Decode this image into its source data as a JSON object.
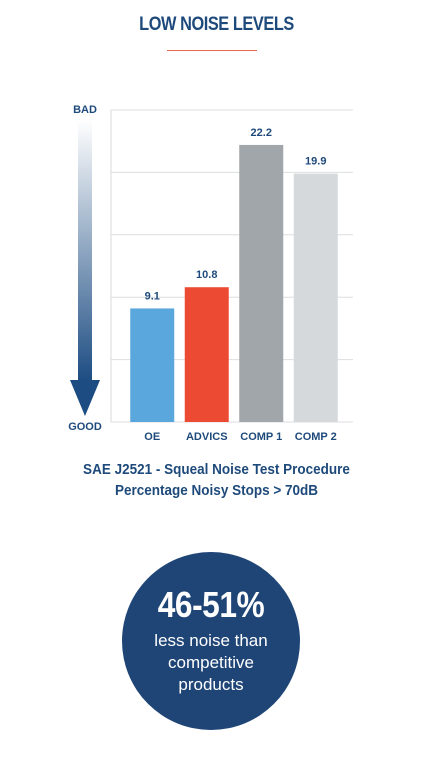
{
  "header": {
    "title": "LOW NOISE LEVELS"
  },
  "chart_data": {
    "type": "bar",
    "categories": [
      "OE",
      "ADVICS",
      "COMP 1",
      "COMP 2"
    ],
    "values": [
      9.1,
      10.8,
      22.2,
      19.9
    ],
    "value_labels": [
      "9.1",
      "10.8",
      "22.2",
      "19.9"
    ],
    "bar_colors": [
      "#5aa7dd",
      "#ec4a32",
      "#a1a6aa",
      "#d5d9dc"
    ],
    "ylim": [
      0,
      25
    ],
    "grid": true,
    "scale_top_label": "BAD",
    "scale_bottom_label": "GOOD",
    "title_lines": [
      "SAE J2521 - Squeal Noise Test Procedure",
      "Percentage Noisy Stops > 70dB"
    ]
  },
  "callout": {
    "value": "46-51%",
    "lines": [
      "less noise than",
      "competitive",
      "products"
    ],
    "background": "#1f4577"
  }
}
